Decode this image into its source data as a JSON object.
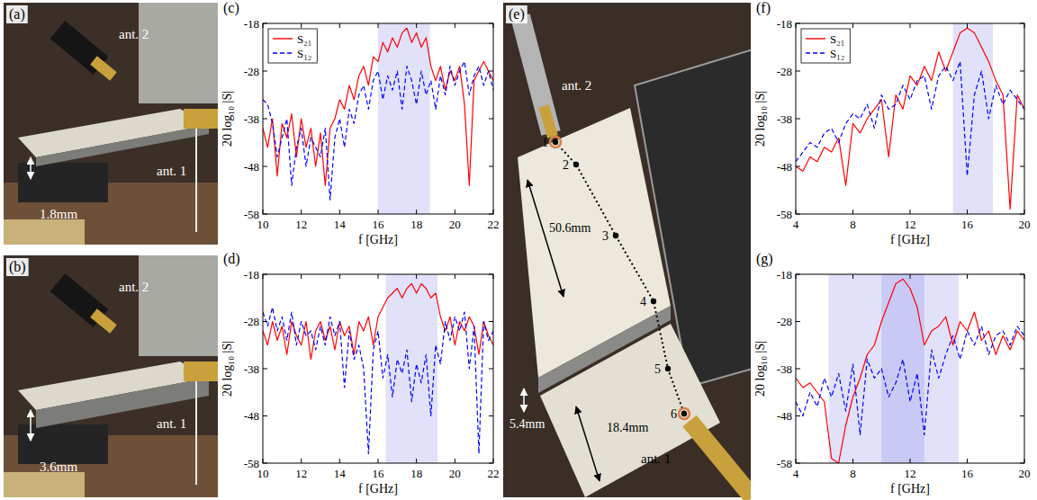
{
  "photos": [
    {
      "label": "(a)",
      "ant2": "ant. 2",
      "ant1": "ant. 1",
      "dims": [
        "1.8mm"
      ]
    },
    {
      "label": "(b)",
      "ant2": "ant. 2",
      "ant1": "ant. 1",
      "dims": [
        "3.6mm"
      ]
    },
    {
      "label": "(e)",
      "ant2": "ant. 2",
      "ant1": "ant. 1",
      "dims": [
        "50.6mm",
        "18.4mm",
        "5.4mm"
      ],
      "points": [
        1,
        2,
        3,
        4,
        5,
        6
      ]
    }
  ],
  "chart_data": [
    {
      "type": "line",
      "title": "(c)",
      "x_label": "f [GHz]",
      "y_label": "20 log₁₀ |S|",
      "x": [
        10,
        10.25,
        10.5,
        10.75,
        11,
        11.25,
        11.5,
        11.75,
        12,
        12.25,
        12.5,
        12.75,
        13,
        13.25,
        13.5,
        13.75,
        14,
        14.25,
        14.5,
        14.75,
        15,
        15.25,
        15.5,
        15.75,
        16,
        16.25,
        16.5,
        16.75,
        17,
        17.25,
        17.5,
        17.75,
        18,
        18.25,
        18.5,
        18.75,
        19,
        19.25,
        19.5,
        19.75,
        20,
        20.25,
        20.5,
        20.75,
        21,
        21.25,
        21.5,
        21.75,
        22
      ],
      "series": [
        {
          "name": "S₂₁",
          "color": "#ff0000",
          "line_style": "solid",
          "values": [
            -40,
            -44,
            -38,
            -50,
            -39,
            -42,
            -37,
            -46,
            -38,
            -44,
            -40,
            -48,
            -41,
            -52,
            -40,
            -38,
            -34,
            -36,
            -31,
            -34,
            -29,
            -27,
            -31,
            -25,
            -26,
            -22,
            -24,
            -21,
            -23,
            -20,
            -19,
            -22,
            -20,
            -23,
            -21,
            -27,
            -30,
            -27,
            -32,
            -28,
            -30,
            -27,
            -35,
            -52,
            -30,
            -28,
            -26,
            -28,
            -30
          ]
        },
        {
          "name": "S₁₂",
          "color": "#0000ff",
          "line_style": "dashed",
          "values": [
            -34,
            -35,
            -39,
            -46,
            -42,
            -38,
            -52,
            -44,
            -40,
            -48,
            -42,
            -44,
            -46,
            -40,
            -55,
            -42,
            -38,
            -44,
            -36,
            -39,
            -33,
            -31,
            -36,
            -30,
            -28,
            -34,
            -29,
            -32,
            -28,
            -36,
            -27,
            -30,
            -35,
            -28,
            -33,
            -30,
            -36,
            -29,
            -33,
            -27,
            -31,
            -28,
            -26,
            -33,
            -29,
            -27,
            -31,
            -28,
            -32
          ]
        }
      ],
      "xlim": [
        10,
        22
      ],
      "xticks": [
        10,
        12,
        14,
        16,
        18,
        20,
        22
      ],
      "ylim": [
        -58,
        -18
      ],
      "yticks": [
        -58,
        -48,
        -38,
        -28,
        -18
      ],
      "legend": "upper left",
      "shaded_ranges": [
        [
          16,
          18.7
        ]
      ]
    },
    {
      "type": "line",
      "title": "(d)",
      "x_label": "f [GHz]",
      "y_label": "20 log₁₀ |S|",
      "x": [
        10,
        10.25,
        10.5,
        10.75,
        11,
        11.25,
        11.5,
        11.75,
        12,
        12.25,
        12.5,
        12.75,
        13,
        13.25,
        13.5,
        13.75,
        14,
        14.25,
        14.5,
        14.75,
        15,
        15.25,
        15.5,
        15.75,
        16,
        16.25,
        16.5,
        16.75,
        17,
        17.25,
        17.5,
        17.75,
        18,
        18.25,
        18.5,
        18.75,
        19,
        19.25,
        19.5,
        19.75,
        20,
        20.25,
        20.5,
        20.75,
        21,
        21.25,
        21.5,
        21.75,
        22
      ],
      "series": [
        {
          "name": "S₂₁",
          "color": "#ff0000",
          "line_style": "solid",
          "values": [
            -30,
            -33,
            -28,
            -32,
            -29,
            -35,
            -28,
            -31,
            -33,
            -28,
            -36,
            -30,
            -28,
            -32,
            -29,
            -34,
            -28,
            -31,
            -29,
            -35,
            -28,
            -30,
            -27,
            -33,
            -27,
            -25,
            -23,
            -22,
            -21,
            -23,
            -21,
            -20,
            -22,
            -20,
            -21,
            -23,
            -22,
            -27,
            -30,
            -27,
            -33,
            -28,
            -30,
            -27,
            -29,
            -35,
            -28,
            -31,
            -33
          ]
        },
        {
          "name": "S₁₂",
          "color": "#0000ff",
          "line_style": "dashed",
          "values": [
            -26,
            -29,
            -25,
            -30,
            -27,
            -32,
            -26,
            -33,
            -28,
            -31,
            -30,
            -34,
            -29,
            -33,
            -27,
            -31,
            -28,
            -42,
            -30,
            -36,
            -33,
            -38,
            -56,
            -34,
            -30,
            -40,
            -35,
            -44,
            -36,
            -39,
            -34,
            -45,
            -37,
            -41,
            -35,
            -48,
            -33,
            -37,
            -28,
            -32,
            -27,
            -30,
            -26,
            -38,
            -29,
            -56,
            -28,
            -32,
            -30
          ]
        }
      ],
      "xlim": [
        10,
        22
      ],
      "xticks": [
        10,
        12,
        14,
        16,
        18,
        20,
        22
      ],
      "ylim": [
        -58,
        -18
      ],
      "yticks": [
        -58,
        -48,
        -38,
        -28,
        -18
      ],
      "shaded_ranges": [
        [
          16.4,
          19.1
        ]
      ]
    },
    {
      "type": "line",
      "title": "(f)",
      "x_label": "f [GHz]",
      "y_label": "20 log₁₀ |S|",
      "x": [
        4,
        4.5,
        5,
        5.5,
        6,
        6.5,
        7,
        7.5,
        8,
        8.5,
        9,
        9.5,
        10,
        10.5,
        11,
        11.5,
        12,
        12.5,
        13,
        13.5,
        14,
        14.5,
        15,
        15.5,
        16,
        16.5,
        17,
        17.5,
        18,
        18.5,
        19,
        19.5,
        20
      ],
      "series": [
        {
          "name": "S₂₁",
          "color": "#ff0000",
          "line_style": "solid",
          "values": [
            -48,
            -49,
            -46,
            -47,
            -44,
            -45,
            -42,
            -52,
            -39,
            -41,
            -38,
            -36,
            -34,
            -46,
            -33,
            -36,
            -29,
            -31,
            -27,
            -30,
            -24,
            -28,
            -24,
            -20,
            -19,
            -20,
            -23,
            -26,
            -30,
            -33,
            -57,
            -33,
            -36
          ]
        },
        {
          "name": "S₁₂",
          "color": "#0000ff",
          "line_style": "dashed",
          "values": [
            -47,
            -45,
            -43,
            -44,
            -41,
            -40,
            -43,
            -39,
            -37,
            -38,
            -35,
            -40,
            -33,
            -36,
            -35,
            -31,
            -34,
            -30,
            -29,
            -36,
            -29,
            -27,
            -30,
            -26,
            -50,
            -33,
            -28,
            -38,
            -31,
            -35,
            -32,
            -34,
            -36
          ]
        }
      ],
      "xlim": [
        4,
        20
      ],
      "xticks": [
        4,
        8,
        12,
        16,
        20
      ],
      "ylim": [
        -58,
        -18
      ],
      "yticks": [
        -58,
        -48,
        -38,
        -28,
        -18
      ],
      "legend": "upper left",
      "shaded_ranges": [
        [
          15,
          17.8
        ]
      ]
    },
    {
      "type": "line",
      "title": "(g)",
      "x_label": "f [GHz]",
      "y_label": "20 log₁₀ |S|",
      "x": [
        4,
        4.5,
        5,
        5.5,
        6,
        6.5,
        7,
        7.5,
        8,
        8.5,
        9,
        9.5,
        10,
        10.5,
        11,
        11.5,
        12,
        12.5,
        13,
        13.5,
        14,
        14.5,
        15,
        15.5,
        16,
        16.5,
        17,
        17.5,
        18,
        18.5,
        19,
        19.5,
        20
      ],
      "series": [
        {
          "name": "S₂₁",
          "color": "#ff0000",
          "line_style": "solid",
          "values": [
            -40,
            -42,
            -41,
            -43,
            -45,
            -57,
            -58,
            -50,
            -44,
            -40,
            -35,
            -33,
            -28,
            -24,
            -20,
            -19,
            -21,
            -25,
            -33,
            -30,
            -29,
            -27,
            -33,
            -28,
            -30,
            -26,
            -32,
            -30,
            -35,
            -31,
            -34,
            -30,
            -32
          ]
        },
        {
          "name": "S₁₂",
          "color": "#0000ff",
          "line_style": "dashed",
          "values": [
            -45,
            -48,
            -43,
            -46,
            -40,
            -44,
            -39,
            -47,
            -37,
            -52,
            -36,
            -40,
            -38,
            -44,
            -41,
            -36,
            -45,
            -39,
            -52,
            -34,
            -40,
            -35,
            -31,
            -36,
            -30,
            -33,
            -29,
            -35,
            -31,
            -30,
            -33,
            -29,
            -31
          ]
        }
      ],
      "xlim": [
        4,
        20
      ],
      "xticks": [
        4,
        8,
        12,
        16,
        20
      ],
      "ylim": [
        -58,
        -18
      ],
      "yticks": [
        -58,
        -48,
        -38,
        -28,
        -18
      ],
      "shaded_ranges": [
        [
          6.3,
          15.4
        ],
        [
          10,
          13
        ]
      ]
    }
  ]
}
